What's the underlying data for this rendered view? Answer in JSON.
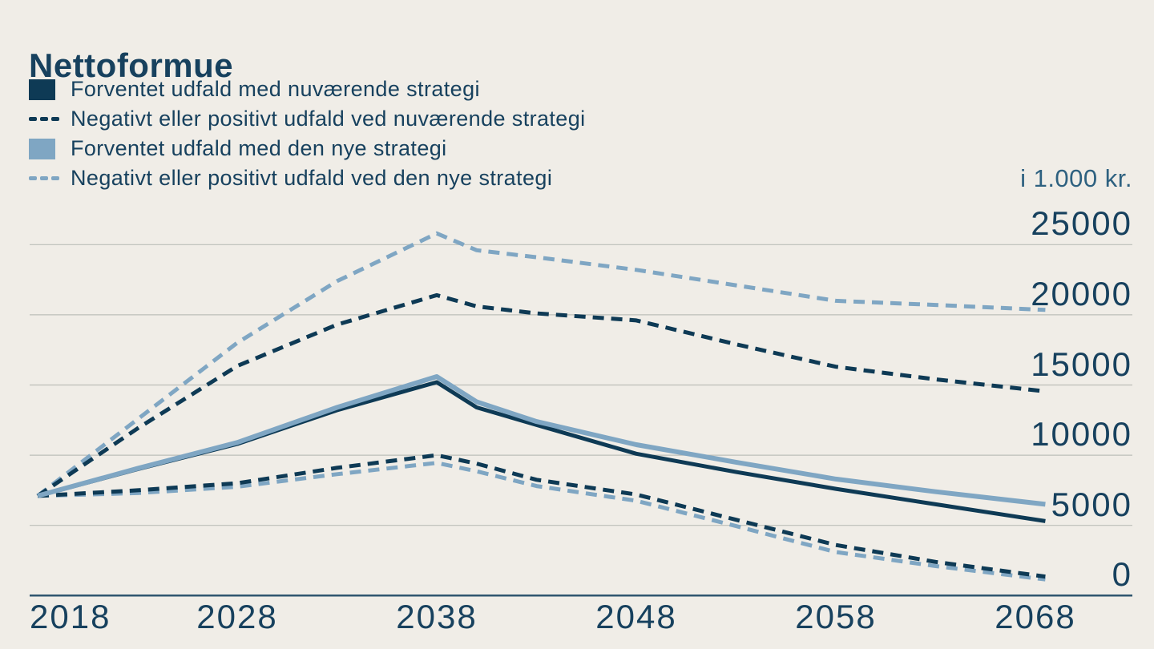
{
  "title": "Nettoformue",
  "unit_label": "i 1.000 kr.",
  "colors": {
    "background": "#f0ede7",
    "dark": "#0e3a55",
    "light": "#7fa6c3",
    "grid": "#bcbeb8",
    "axis": "#2f566f",
    "label": "#17415e",
    "unit": "#2e6180"
  },
  "legend": {
    "items": [
      {
        "label": "Forventet udfald med nuværende strategi",
        "swatch": "solid",
        "color": "dark"
      },
      {
        "label": "Negativt eller positivt udfald ved nuværende strategi",
        "swatch": "dashed",
        "color": "dark"
      },
      {
        "label": "Forventet udfald med den nye strategi",
        "swatch": "solid",
        "color": "light"
      },
      {
        "label": "Negativt eller positivt udfald ved den nye strategi",
        "swatch": "dashed",
        "color": "light"
      }
    ]
  },
  "chart_data": {
    "type": "line",
    "title": "Nettoformue",
    "unit": "i 1.000 kr.",
    "xlabel": "",
    "ylabel": "i 1.000 kr.",
    "x_ticks": [
      2018,
      2028,
      2038,
      2048,
      2058,
      2068
    ],
    "y_ticks": [
      25000,
      20000,
      15000,
      10000,
      5000,
      0
    ],
    "ylim": [
      0,
      26500
    ],
    "xlim": [
      2018,
      2070
    ],
    "grid": "horizontal",
    "legend_position": "top-left",
    "years": [
      2018,
      2023,
      2028,
      2033,
      2038,
      2040,
      2043,
      2048,
      2053,
      2058,
      2063,
      2068.5
    ],
    "series": [
      {
        "name": "Forventet udfald med nuværende strategi",
        "style": "solid",
        "color": "dark",
        "values": [
          7100,
          9000,
          10800,
          13200,
          15200,
          13400,
          12150,
          10100,
          8800,
          7600,
          6500,
          5300
        ]
      },
      {
        "name": "Negativt eller positivt udfald ved nuværende strategi",
        "style": "dashed",
        "color": "dark",
        "upper": [
          7100,
          11900,
          16350,
          19300,
          21400,
          20600,
          20100,
          19600,
          17900,
          16300,
          15400,
          14550
        ],
        "lower": [
          7100,
          7500,
          8000,
          9100,
          10000,
          9400,
          8250,
          7200,
          5400,
          3600,
          2400,
          1350
        ]
      },
      {
        "name": "Forventet udfald med den nye strategi",
        "style": "solid",
        "color": "light",
        "values": [
          7100,
          9050,
          10900,
          13400,
          15600,
          13800,
          12400,
          10750,
          9500,
          8300,
          7400,
          6500
        ]
      },
      {
        "name": "Negativt eller positivt udfald ved den nye strategi",
        "style": "dashed",
        "color": "light",
        "upper": [
          7100,
          12550,
          18000,
          22400,
          25800,
          24600,
          24100,
          23200,
          22100,
          21000,
          20700,
          20350
        ],
        "lower": [
          7100,
          7300,
          7750,
          8650,
          9450,
          8850,
          7800,
          6750,
          4950,
          3100,
          2100,
          1150
        ]
      }
    ]
  }
}
